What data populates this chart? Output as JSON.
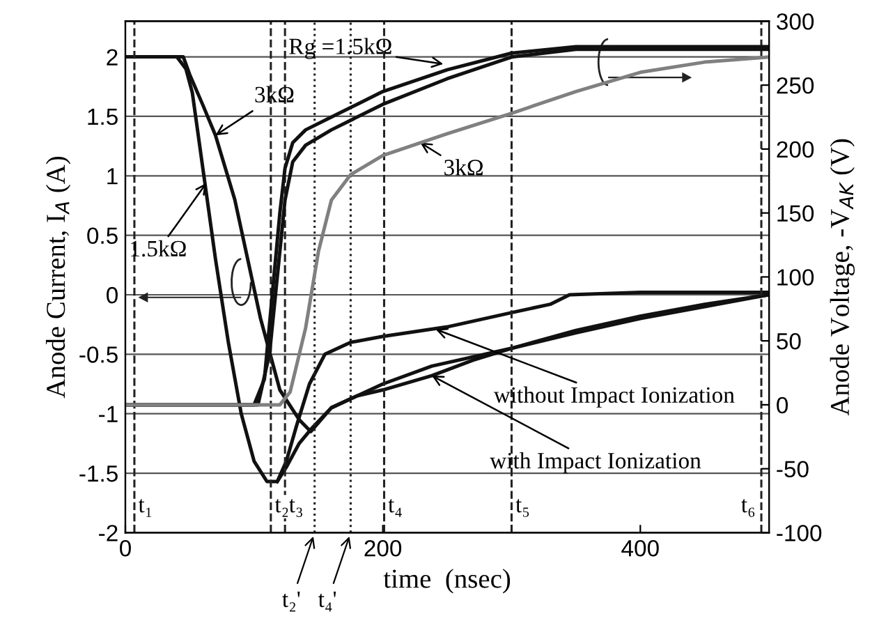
{
  "chart_data": {
    "type": "line",
    "xlabel": "time  (nsec)",
    "ylabel": "Anode Current, I$_{A}$ (A)",
    "y2label": "Anode Voltage, -V$_{AK}$ (V)",
    "xlim": [
      0,
      500
    ],
    "xticks": [
      0,
      200,
      400
    ],
    "ylim": [
      -2,
      2.3
    ],
    "yticks": [
      -2,
      -1.5,
      -1,
      -0.5,
      0,
      0.5,
      1,
      1.5,
      2
    ],
    "y2lim": [
      -100,
      300
    ],
    "y2ticks": [
      -100,
      -50,
      0,
      50,
      100,
      150,
      200,
      250,
      300
    ],
    "grid": "y",
    "marker": "none",
    "line_style": "solid",
    "series": [
      {
        "color": "#111111",
        "x": [
          0,
          40,
          47,
          52,
          61,
          70,
          80,
          90,
          100,
          110,
          118,
          125,
          133,
          143,
          155,
          175,
          200,
          250,
          300,
          330,
          345,
          400,
          500
        ],
        "values": [
          2,
          2,
          1.9,
          1.7,
          1.0,
          0.3,
          -0.4,
          -1.0,
          -1.4,
          -1.57,
          -1.57,
          -1.4,
          -1.1,
          -0.75,
          -0.5,
          -0.4,
          -0.35,
          -0.27,
          -0.15,
          -0.08,
          0.0,
          0.02,
          0.02
        ]
      },
      {
        "color": "#111111",
        "x": [
          118,
          125,
          135,
          145,
          160,
          180,
          200,
          238,
          270,
          300,
          350,
          400,
          450,
          500
        ],
        "values": [
          -1.57,
          -1.45,
          -1.25,
          -1.12,
          -0.95,
          -0.85,
          -0.8,
          -0.68,
          -0.55,
          -0.45,
          -0.3,
          -0.18,
          -0.08,
          0
        ]
      },
      {
        "color": "#111111",
        "x": [
          0,
          45,
          50,
          60,
          70,
          85,
          105,
          120,
          135,
          144,
          160,
          200,
          238,
          300,
          350,
          400,
          450,
          500
        ],
        "values": [
          2,
          2,
          1.85,
          1.6,
          1.34,
          0.8,
          -0.2,
          -0.8,
          -1.05,
          -1.15,
          -0.95,
          -0.75,
          -0.6,
          -0.45,
          -0.32,
          -0.2,
          -0.1,
          0
        ]
      },
      {
        "color": "#111111",
        "axis": "y2",
        "x": [
          0,
          100,
          108,
          114,
          120,
          124,
          130,
          140,
          160,
          180,
          200,
          250,
          300,
          350,
          500
        ],
        "values": [
          0,
          0,
          20,
          85,
          150,
          185,
          205,
          215,
          225,
          235,
          245,
          262,
          275,
          280,
          280
        ]
      },
      {
        "color": "#111111",
        "axis": "y2",
        "x": [
          0,
          103,
          112,
          118,
          124,
          130,
          140,
          160,
          200,
          250,
          300,
          350,
          500
        ],
        "values": [
          0,
          0,
          40,
          100,
          160,
          190,
          203,
          215,
          235,
          255,
          272,
          278,
          278
        ]
      },
      {
        "color": "#808080",
        "axis": "y2",
        "x": [
          0,
          120,
          128,
          140,
          150,
          160,
          175,
          200,
          250,
          300,
          350,
          400,
          450,
          500
        ],
        "values": [
          0,
          0,
          10,
          60,
          120,
          160,
          180,
          195,
          212,
          228,
          245,
          260,
          268,
          272
        ]
      }
    ],
    "ref_lines": [
      {
        "axis": "x",
        "value": 7,
        "label": "t₁",
        "line_style": "dashed"
      },
      {
        "axis": "x",
        "value": 113,
        "label": "t₂",
        "line_style": "dashed"
      },
      {
        "axis": "x",
        "value": 124,
        "label": "t₃",
        "line_style": "dashed"
      },
      {
        "axis": "x",
        "value": 147,
        "label": "t₂'",
        "line_style": "dotted"
      },
      {
        "axis": "x",
        "value": 175,
        "label": "t₄'",
        "line_style": "dotted"
      },
      {
        "axis": "x",
        "value": 201,
        "label": "t₄",
        "line_style": "dashed"
      },
      {
        "axis": "x",
        "value": 300,
        "label": "t₅",
        "line_style": "dashed"
      },
      {
        "axis": "x",
        "value": 494,
        "label": "t₆",
        "line_style": "dashed"
      }
    ],
    "annotations": [
      {
        "text": "Rg =1.5kΩ",
        "x": 247,
        "y": 1.94
      },
      {
        "text": "3kΩ",
        "x": 70,
        "y": 1.34
      },
      {
        "text": "1.5kΩ",
        "x": 63,
        "y": 0.94
      },
      {
        "text": "3kΩ",
        "x": 229,
        "y": 1.28
      },
      {
        "text": "without Impact Ionization",
        "x": 241,
        "y": -0.29
      },
      {
        "text": "with Impact Ionization",
        "x": 238,
        "y": -0.68
      }
    ]
  }
}
